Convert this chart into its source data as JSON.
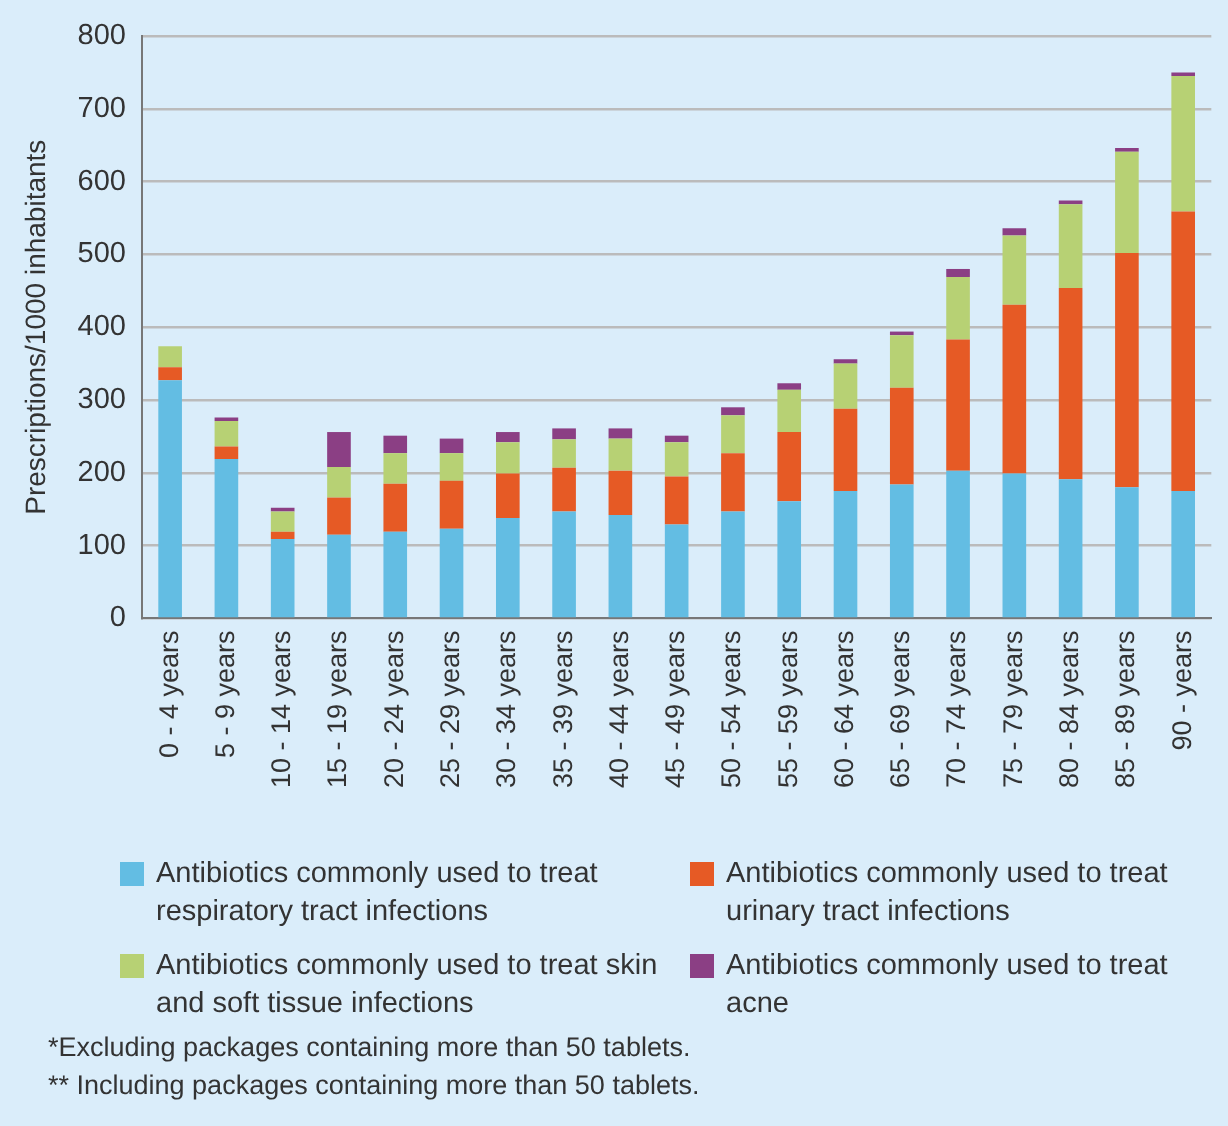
{
  "chart_data": {
    "type": "bar",
    "stacked": true,
    "ylabel": "Prescriptions/1000 inhabitants",
    "categories": [
      "0 - 4 years",
      "5 - 9 years",
      "10 - 14 years",
      "15 - 19 years",
      "20 - 24 years",
      "25 - 29 years",
      "30 - 34 years",
      "35 - 39 years",
      "40 - 44 years",
      "45 - 49 years",
      "50 - 54 years",
      "55 - 59 years",
      "60 - 64 years",
      "65 - 69 years",
      "70 - 74 years",
      "75 - 79 years",
      "80 - 84 years",
      "85 - 89 years",
      "90 - years"
    ],
    "series": [
      {
        "name": "Antibiotics commonly used to treat respiratory tract infections",
        "color": "#63bde3",
        "values": [
          327,
          219,
          109,
          115,
          119,
          123,
          138,
          147,
          142,
          129,
          147,
          161,
          175,
          184,
          203,
          199,
          191,
          180,
          175
        ]
      },
      {
        "name": "Antibiotics commonly used to treat urinary tract infections",
        "color": "#e65a25",
        "values": [
          18,
          17,
          10,
          51,
          66,
          66,
          61,
          60,
          61,
          66,
          80,
          95,
          113,
          133,
          180,
          232,
          263,
          322,
          384
        ]
      },
      {
        "name": "Antibiotics commonly used to treat skin and soft tissue infections",
        "color": "#b7d174",
        "values": [
          29,
          35,
          28,
          42,
          42,
          38,
          43,
          39,
          44,
          47,
          52,
          58,
          62,
          72,
          86,
          95,
          115,
          139,
          186
        ]
      },
      {
        "name": "Antibiotics commonly used to treat acne",
        "color": "#8b3f84",
        "values": [
          0,
          5,
          5,
          48,
          24,
          20,
          14,
          15,
          14,
          9,
          11,
          9,
          6,
          5,
          11,
          10,
          5,
          5,
          5
        ]
      }
    ],
    "ylim": [
      0,
      800
    ],
    "yticks": [
      0,
      100,
      200,
      300,
      400,
      500,
      600,
      700,
      800
    ],
    "grid": "y",
    "legend": "bottom",
    "annotations": [
      "*Excluding packages containing more than 50 tablets.",
      "** Including packages containing more than 50 tablets."
    ]
  }
}
